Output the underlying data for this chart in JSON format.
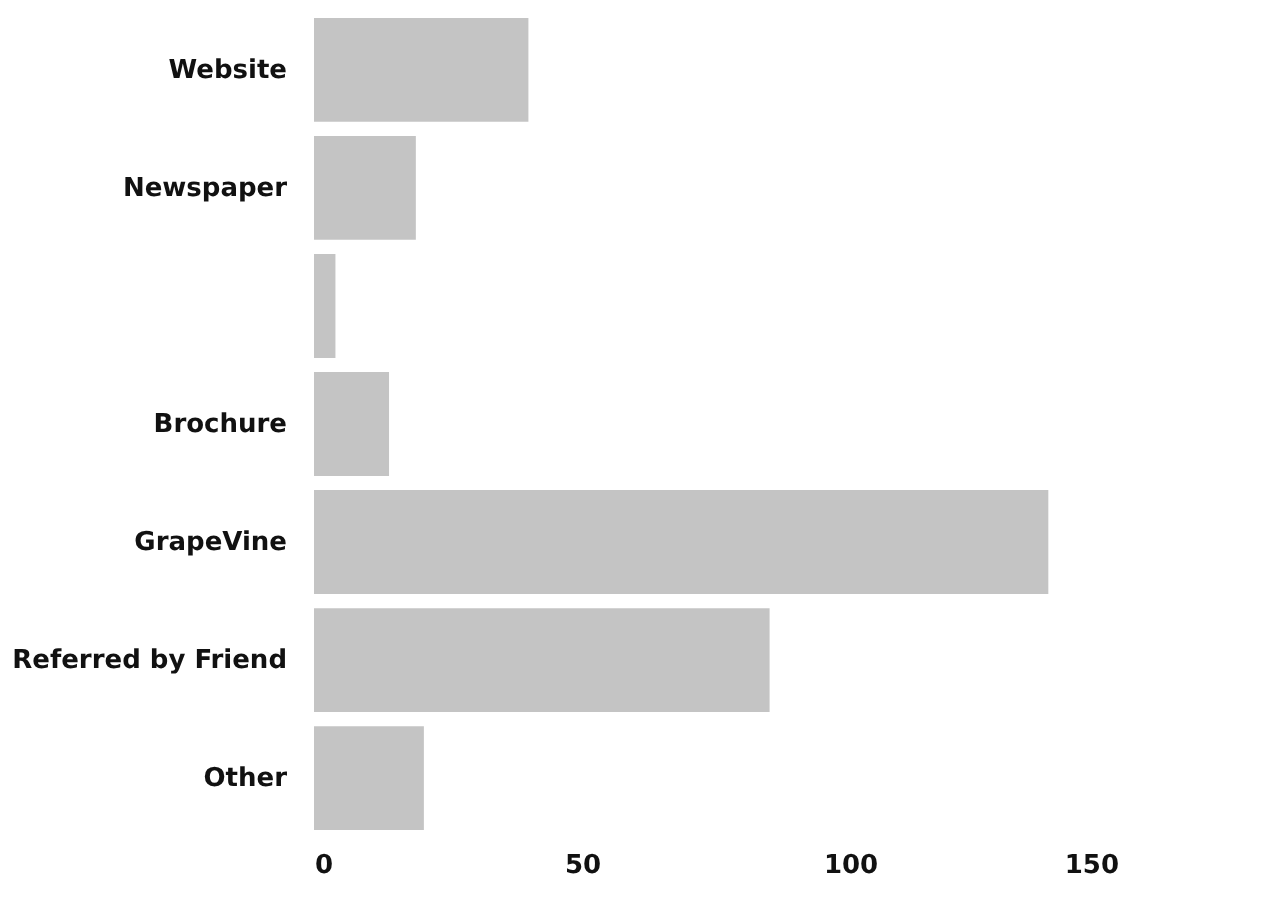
{
  "chart_data": {
    "type": "bar",
    "orientation": "horizontal",
    "categories": [
      "Website",
      "Newspaper",
      null,
      "Brochure",
      "GrapeVine",
      "Referred by Friend",
      "Other"
    ],
    "values": [
      40,
      19,
      4,
      14,
      137,
      85,
      20.5
    ],
    "color": "#c4c4c4",
    "xlim": [
      0,
      150
    ],
    "xticks": [
      0,
      50,
      100,
      150
    ],
    "grid": false
  }
}
